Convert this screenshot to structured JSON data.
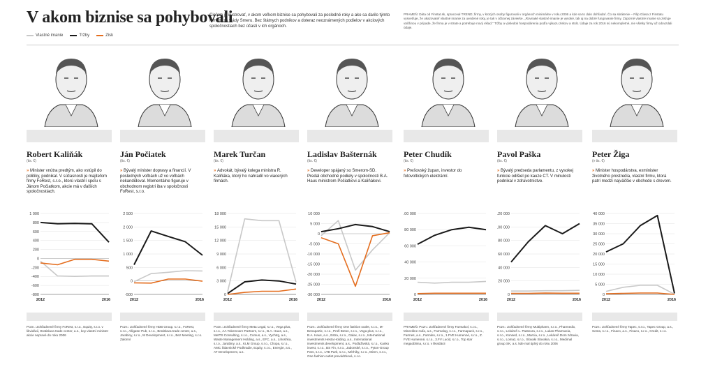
{
  "header": {
    "title": "V akom biznise sa pohybovali",
    "intro": "Cieľom je ilustrovať, v akom veľkom biznise sa pohybovali za posledné roky a ako sa darilo týmto firmám za vlády Smeru. Bez štátnych podnikov a doteraz neoznámených podielov v akciových spoločnostiach bez účasti v ich orgánoch.",
    "source": "PRAMEŇ: Dáta od Finstat.sk, spracoval TREND; firmy, v ktorých osoby figurovali v orgánoch minimálne v roku 2006 a kde sa to dalo dohľadať. Čo sa skrátenie – Filip Glasa z Finstatu vysvetľuje, že ukazovateľ vlastné imanie za uvedené roky, je tak v účtovnej závierke. „Rovnaké vlastné imanie je vysoké, tak aj na dobré fungovanie firmy. Záporné vlastné imanie sa zisťuje väčšinou v prípade, že firma je v strate a potrebuje nový vklad.“ Tržby a výsledok hospodárenia podľa výkazu ziskov a strát. Údaje za rok 2016 sú nekompletné, nie všetky firmy už odovzdali údaje.",
    "legend": [
      {
        "label": "Vlastné imanie",
        "color": "#c8c8c8"
      },
      {
        "label": "Tržby",
        "color": "#1a1a1a"
      },
      {
        "label": "Zisk",
        "color": "#e46d1e"
      }
    ]
  },
  "colors": {
    "equity": "#c8c8c8",
    "revenue": "#1a1a1a",
    "profit": "#e46d1e"
  },
  "people": [
    {
      "name": "Robert Kaliňák",
      "unit": "(tis. €)",
      "desc": "Minister vnútra predtým, ako vstúpil do politiky, podnikal. V súčasnosti je majiteľom firmy FoRest, s.r.o., ktorú vlastní spolu s Jánom Počiatkom, akcie má v ďalších spoločnostiach.",
      "notes": "Pozn.: Zohľadnené firmy FoRest, s.r.o., Equity, s.r.o. v likvidácii, Bratislava trade center, a.s., koy-vlastní minister akcie nepravé do roku 2006"
    },
    {
      "name": "Ján Počiatek",
      "unit": "(tis. €)",
      "desc": "Bývalý minister dopravy a financií. V posledných voľbách už vo voľbách nekandidoval. Momentálne figuruje v obchodnom registri iba v spoločnosti FoRest, s.r.o.",
      "notes": "Pozn.: Zohľadnené firmy HDB Group, s.r.o., FoRest, s.r.o., Alligator Pub, s.r.o., Bratislava trade center, a.s., Jarabiny, s.r.o., M Development, s.r.o., Bez Meeting, s.r.o. Zalonní"
    },
    {
      "name": "Marek Turčan",
      "unit": "(tis. €)",
      "desc": "Advokát, bývalý kolega ministra R. Kaliňáka, ktorý ho nahradil vo viacerých firmách.",
      "notes": "Pozn.: Zohľadnené firmy Meta Legal, s.r.o., Vega plus, s.r.o., AA Yokemoore Partners, s.r.o., B.A. Haus, a.s., MetTS Consulting, s.r.o., Comus, a.s., Vychtrg, a.s., Waste Management Holding, a.s., EFC, a.s., Lihoshka, s.r.o., Jarabiny, a.s., KLM Group, s.r.o., Chopa, s.r.o., AMC Štiavnické Podhradie, Equity, s.r.o., Energie, a.s., AT Development, a.s."
    },
    {
      "name": "Ladislav Bašternák",
      "unit": "(tis. €)",
      "desc": "Developer spájaný so Smerom-SD. Predal obchodné podiely v spoločnosti B.A. Haus ministrom Počiatkovi a Kaliňákovi.",
      "notes": "Pozn.: Zohľadnené firmy One fashion outlet, s.r.o., M- Benapartic, s.r.o., Profi Beton, s.r.o., Vega plus, s.r.o., B.A. Haus, a.s., Estra, s.r.o., Galax, s.r.o., International investments Hesta Holding, a.s., International investments development, a.s., Podlaživská, s.r.o., Kanko invest, s.r.o., BS Fin, s.r.o., Jabonské, s.r.o., Pyton-Group Pars, s.r.o., LTB Park, s.r.o., Mérhiky, s.r.o., Miren, s.r.o., One fashion outlet prevádzková, s.r.o."
    },
    {
      "name": "Peter Chudík",
      "unit": "(tis. €)",
      "desc": "Prešovský župan, investor do fotovoltických elektrární.",
      "notes": "PRAMEŇ: Pozn.: Zohľadnené firmy Farmakol, s.r.o., Minerálne roďa, a.s., Farmalog, s.r.o., Farmapack, s.r.o., Farmes, a.s., Farmlen, s.r.o., 1.FVE Humenné, s.r.o., Z. FVE Humenné, s.r.o., 3.FV Lucid, s.r.o., Top star megaoblima, s.r.o. v likvidácii"
    },
    {
      "name": "Pavol Paška",
      "unit": "(tis. €)",
      "desc": "Bývalý predseda parlamentu, z vysokej funkcie odišiel po kauze CT. V minulosti podnikal v zdravotníctve.",
      "notes": "Pozn.: Zohľadnené firmy Multipharm, s.r.o., Pharmedix, s.r.o., Lekáreň L. Pasteura, s.r.o., Lukas Pharmacia, s.r.o., Konsed, s.r.o., Marcia, s.r.o., Lekáreň Dom zdravia, s.r.o., Lomaz, s.r.o., Slovaki Slovakia, s.r.o., Medimal group SK, a.s. kde mal úplný do roku 2006"
    },
    {
      "name": "Peter Žiga",
      "unit": "(v tis. €)",
      "desc": "Minister hospodárstva, exminister životného prostredia, vlastní firmu, ktorá patrí medzi najväčšie v obchode s drevom.",
      "notes": "Pozn.: Zohľadnené firmy Tapec, s.r.o., Tapec Group, a.s., Senta, s.r.o., Finaco, a.s., Finaco, s.r.o., Credit, s.r.o."
    }
  ],
  "chart_data": [
    {
      "type": "line",
      "title": "Robert Kaliňák",
      "x": [
        2012,
        2013,
        2014,
        2015,
        2016
      ],
      "xticks": [
        "2012",
        "2016"
      ],
      "ylim": [
        -800,
        1000
      ],
      "yticks": [
        1000,
        800,
        600,
        400,
        200,
        0,
        -200,
        -400,
        -600,
        -800
      ],
      "yticklabels": [
        "1 000",
        "800",
        "600",
        "400",
        "200",
        "0",
        "-200",
        "-400",
        "-600",
        "-800"
      ],
      "series": [
        {
          "name": "Tržby",
          "values": [
            800,
            770,
            780,
            770,
            360
          ]
        },
        {
          "name": "Vlastné imanie",
          "values": [
            -60,
            -390,
            -400,
            -390,
            -390
          ]
        },
        {
          "name": "Zisk",
          "values": [
            -100,
            -140,
            -20,
            -20,
            -60
          ]
        }
      ]
    },
    {
      "type": "line",
      "title": "Ján Počiatek",
      "x": [
        2012,
        2013,
        2014,
        2015,
        2016
      ],
      "xticks": [
        "2012",
        "2016"
      ],
      "ylim": [
        -500,
        2500
      ],
      "yticks": [
        2500,
        2000,
        1500,
        1000,
        500,
        0,
        -500
      ],
      "yticklabels": [
        "2 500",
        "2 000",
        "1 500",
        "1 000",
        "500",
        "0",
        "-500"
      ],
      "series": [
        {
          "name": "Tržby",
          "values": [
            600,
            1850,
            1650,
            1450,
            950
          ]
        },
        {
          "name": "Vlastné imanie",
          "values": [
            -30,
            270,
            320,
            380,
            370
          ]
        },
        {
          "name": "Zisk",
          "values": [
            -70,
            -80,
            70,
            70,
            -10
          ]
        }
      ]
    },
    {
      "type": "line",
      "title": "Marek Turčan",
      "x": [
        2012,
        2013,
        2014,
        2015,
        2016
      ],
      "xticks": [
        "2012",
        "2016"
      ],
      "ylim": [
        0,
        18000
      ],
      "yticks": [
        18000,
        15000,
        12000,
        9000,
        6000,
        3000,
        0
      ],
      "yticklabels": [
        "18 000",
        "15 000",
        "12 000",
        "9 000",
        "6 000",
        "3 000",
        "0"
      ],
      "series": [
        {
          "name": "Vlastné imanie",
          "values": [
            600,
            16800,
            16400,
            16400,
            2700
          ]
        },
        {
          "name": "Tržby",
          "values": [
            200,
            2800,
            3200,
            3000,
            2300
          ]
        },
        {
          "name": "Zisk",
          "values": [
            0,
            450,
            700,
            700,
            1200
          ]
        }
      ]
    },
    {
      "type": "line",
      "title": "Ladislav Bašternák",
      "x": [
        2012,
        2013,
        2014,
        2015,
        2016
      ],
      "xticks": [
        "2012",
        "2016"
      ],
      "ylim": [
        -30000,
        10000
      ],
      "yticks": [
        10000,
        5000,
        0,
        -5000,
        -10000,
        -15000,
        -20000,
        -25000,
        -30000
      ],
      "yticklabels": [
        "10 000",
        "5 000",
        "0",
        "-5 000",
        "-10 000",
        "-15 000",
        "-20 000",
        "-25 000",
        "-30 000"
      ],
      "series": [
        {
          "name": "Vlastné imanie",
          "values": [
            -1000,
            6500,
            -18000,
            -8000,
            500
          ]
        },
        {
          "name": "Tržby",
          "values": [
            1000,
            2500,
            4500,
            3500,
            1000
          ]
        },
        {
          "name": "Zisk",
          "values": [
            -2000,
            -5000,
            -26000,
            -1000,
            500
          ]
        }
      ]
    },
    {
      "type": "line",
      "title": "Peter Chudík",
      "x": [
        2012,
        2013,
        2014,
        2015,
        2016
      ],
      "xticks": [
        "2012",
        "2016"
      ],
      "ylim": [
        0,
        100000
      ],
      "yticks": [
        100000,
        80000,
        60000,
        40000,
        20000,
        0
      ],
      "yticklabels": [
        "100 000",
        "80 000",
        "60 000",
        "40 000",
        "20 000",
        "0"
      ],
      "series": [
        {
          "name": "Tržby",
          "values": [
            62000,
            73000,
            80000,
            83000,
            80000
          ]
        },
        {
          "name": "Vlastné imanie",
          "values": [
            15000,
            14000,
            15000,
            15000,
            16000
          ]
        },
        {
          "name": "Zisk",
          "values": [
            1000,
            1500,
            1500,
            1500,
            1500
          ]
        }
      ]
    },
    {
      "type": "line",
      "title": "Pavol Paška",
      "x": [
        2012,
        2013,
        2014,
        2015,
        2016
      ],
      "xticks": [
        "2012",
        "2016"
      ],
      "ylim": [
        0,
        120000
      ],
      "yticks": [
        120000,
        100000,
        80000,
        60000,
        40000,
        20000,
        0
      ],
      "yticklabels": [
        "120 000",
        "100 000",
        "80 000",
        "60 000",
        "40 000",
        "20 000",
        "0"
      ],
      "series": [
        {
          "name": "Tržby",
          "values": [
            48000,
            78000,
            102000,
            90000,
            105000
          ]
        },
        {
          "name": "Vlastné imanie",
          "values": [
            5000,
            5000,
            5500,
            5500,
            6000
          ]
        },
        {
          "name": "Zisk",
          "values": [
            1500,
            1500,
            2000,
            1800,
            1800
          ]
        }
      ]
    },
    {
      "type": "line",
      "title": "Peter Žiga",
      "x": [
        2012,
        2013,
        2014,
        2015,
        2016
      ],
      "xticks": [
        "2012",
        "2016"
      ],
      "ylim": [
        0,
        40000
      ],
      "yticks": [
        40000,
        35000,
        30000,
        25000,
        20000,
        15000,
        10000,
        5000,
        0
      ],
      "yticklabels": [
        "40 000",
        "35 000",
        "30 000",
        "25 000",
        "20 000",
        "15 000",
        "10 000",
        "5 000",
        "0"
      ],
      "series": [
        {
          "name": "Tržby",
          "values": [
            21000,
            25000,
            34000,
            39000,
            500
          ]
        },
        {
          "name": "Vlastné imanie",
          "values": [
            1500,
            3500,
            4500,
            4500,
            100
          ]
        },
        {
          "name": "Zisk",
          "values": [
            300,
            500,
            700,
            700,
            0
          ]
        }
      ]
    }
  ]
}
